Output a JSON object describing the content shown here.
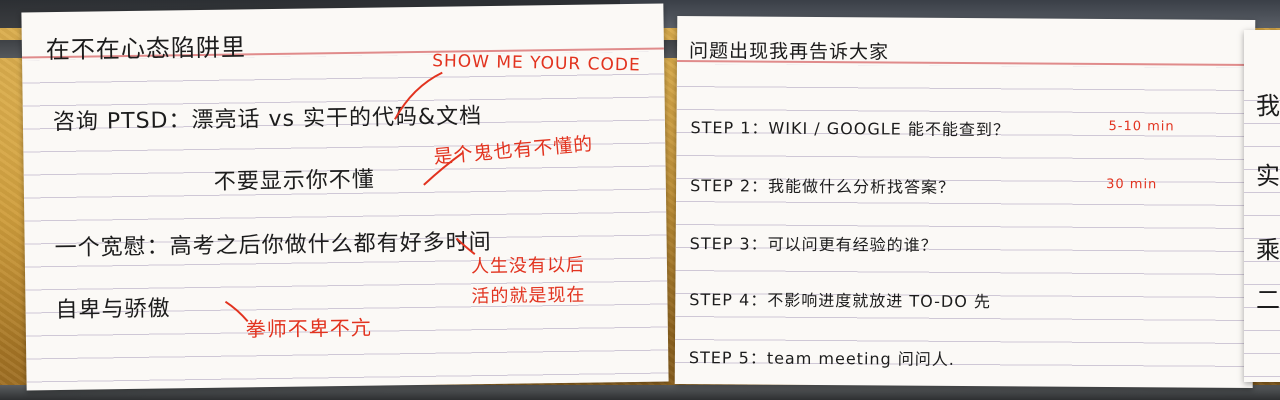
{
  "card_left": {
    "title": "在不在心态陷阱里",
    "line1": "咨询 PTSD：漂亮话 vs 实干的代码&文档",
    "line2": "不要显示你不懂",
    "line3": "一个宽慰：高考之后你做什么都有好多时间",
    "line4": "自卑与骄傲",
    "red_notes": {
      "show_code": "SHOW ME YOUR CODE",
      "ghost": "是个鬼也有不懂的",
      "life1": "人生没有以后",
      "life2": "活的就是现在",
      "humble": "拳师不卑不亢"
    }
  },
  "card_right": {
    "title": "问题出现我再告诉大家",
    "steps": [
      "STEP 1：WIKI / GOOGLE 能不能查到？",
      "STEP 2：我能做什么分析找答案？",
      "STEP 3：可以问更有经验的谁？",
      "STEP 4：不影响进度就放进 TO-DO 先",
      "STEP 5：team meeting 问问人."
    ],
    "time_notes": [
      "5-10 min",
      "30 min"
    ]
  },
  "card_edge": {
    "chars": [
      "我",
      "实",
      "乘",
      "二"
    ]
  },
  "colors": {
    "ink": "#1c1c1c",
    "red_ink": "#e2331f",
    "card": "#fbf9f6",
    "wall": "#c99a3a"
  }
}
